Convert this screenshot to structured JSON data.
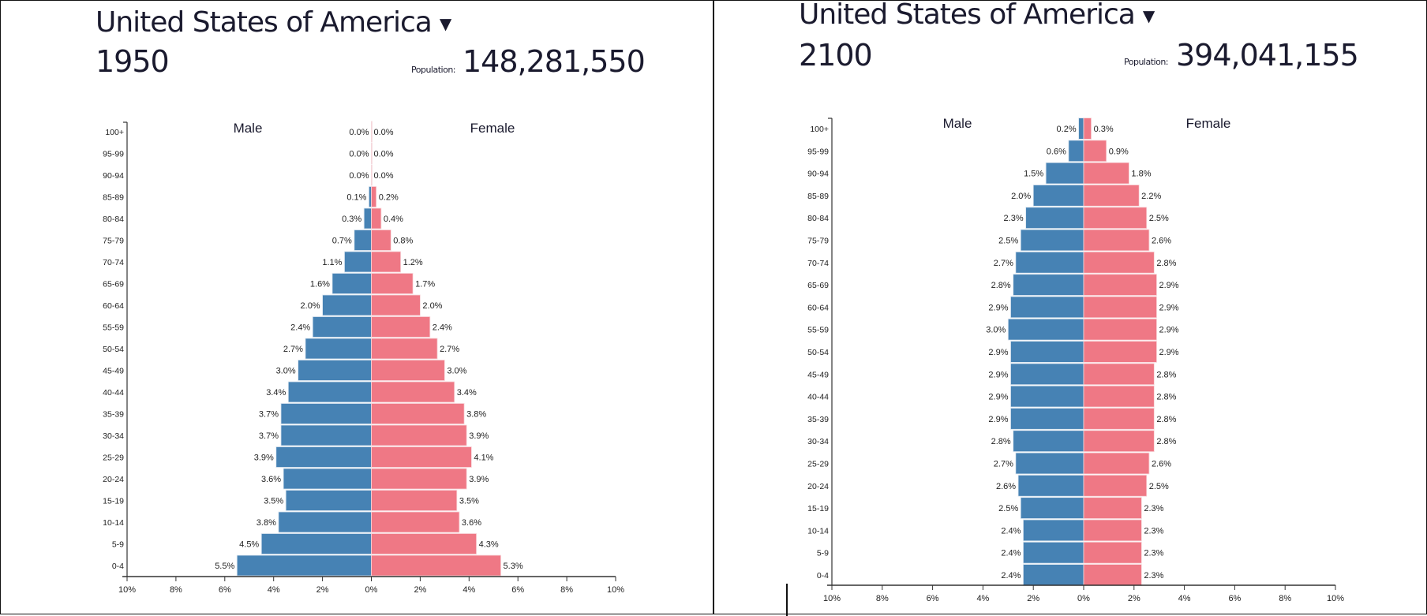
{
  "colors": {
    "male": "#4682b4",
    "female": "#ef7885",
    "text": "#1a1a2e"
  },
  "panels": [
    {
      "country": "United States of America",
      "caret_icon": "triangle-down-icon",
      "year": "1950",
      "population_label": "Population:",
      "population": "148,281,550"
    },
    {
      "country": "United States of America",
      "caret_icon": "triangle-down-icon",
      "year": "2100",
      "population_label": "Population:",
      "population": "394,041,155"
    }
  ],
  "chart_data": [
    {
      "type": "bar",
      "orientation": "horizontal-population-pyramid",
      "year": "1950",
      "categories": [
        "100+",
        "95-99",
        "90-94",
        "85-89",
        "80-84",
        "75-79",
        "70-74",
        "65-69",
        "60-64",
        "55-59",
        "50-54",
        "45-49",
        "40-44",
        "35-39",
        "30-34",
        "25-29",
        "20-24",
        "15-19",
        "10-14",
        "5-9",
        "0-4"
      ],
      "series": [
        {
          "name": "Male",
          "values": [
            0.0,
            0.0,
            0.0,
            0.1,
            0.3,
            0.7,
            1.1,
            1.6,
            2.0,
            2.4,
            2.7,
            3.0,
            3.4,
            3.7,
            3.7,
            3.9,
            3.6,
            3.5,
            3.8,
            4.5,
            5.5
          ]
        },
        {
          "name": "Female",
          "values": [
            0.0,
            0.0,
            0.0,
            0.2,
            0.4,
            0.8,
            1.2,
            1.7,
            2.0,
            2.4,
            2.7,
            3.0,
            3.4,
            3.8,
            3.9,
            4.1,
            3.9,
            3.5,
            3.6,
            4.3,
            5.3
          ]
        }
      ],
      "xlim": [
        -10,
        10
      ],
      "xticks": [
        "10%",
        "8%",
        "6%",
        "4%",
        "2%",
        "0%",
        "2%",
        "4%",
        "6%",
        "8%",
        "10%"
      ],
      "unit": "%"
    },
    {
      "type": "bar",
      "orientation": "horizontal-population-pyramid",
      "year": "2100",
      "categories": [
        "100+",
        "95-99",
        "90-94",
        "85-89",
        "80-84",
        "75-79",
        "70-74",
        "65-69",
        "60-64",
        "55-59",
        "50-54",
        "45-49",
        "40-44",
        "35-39",
        "30-34",
        "25-29",
        "20-24",
        "15-19",
        "10-14",
        "5-9",
        "0-4"
      ],
      "series": [
        {
          "name": "Male",
          "values": [
            0.2,
            0.6,
            1.5,
            2.0,
            2.3,
            2.5,
            2.7,
            2.8,
            2.9,
            3.0,
            2.9,
            2.9,
            2.9,
            2.9,
            2.8,
            2.7,
            2.6,
            2.5,
            2.4,
            2.4,
            2.4
          ]
        },
        {
          "name": "Female",
          "values": [
            0.3,
            0.9,
            1.8,
            2.2,
            2.5,
            2.6,
            2.8,
            2.9,
            2.9,
            2.9,
            2.9,
            2.8,
            2.8,
            2.8,
            2.8,
            2.6,
            2.5,
            2.3,
            2.3,
            2.3,
            2.3
          ]
        }
      ],
      "xlim": [
        -10,
        10
      ],
      "xticks": [
        "10%",
        "8%",
        "6%",
        "4%",
        "2%",
        "0%",
        "2%",
        "4%",
        "6%",
        "8%",
        "10%"
      ],
      "unit": "%"
    }
  ]
}
